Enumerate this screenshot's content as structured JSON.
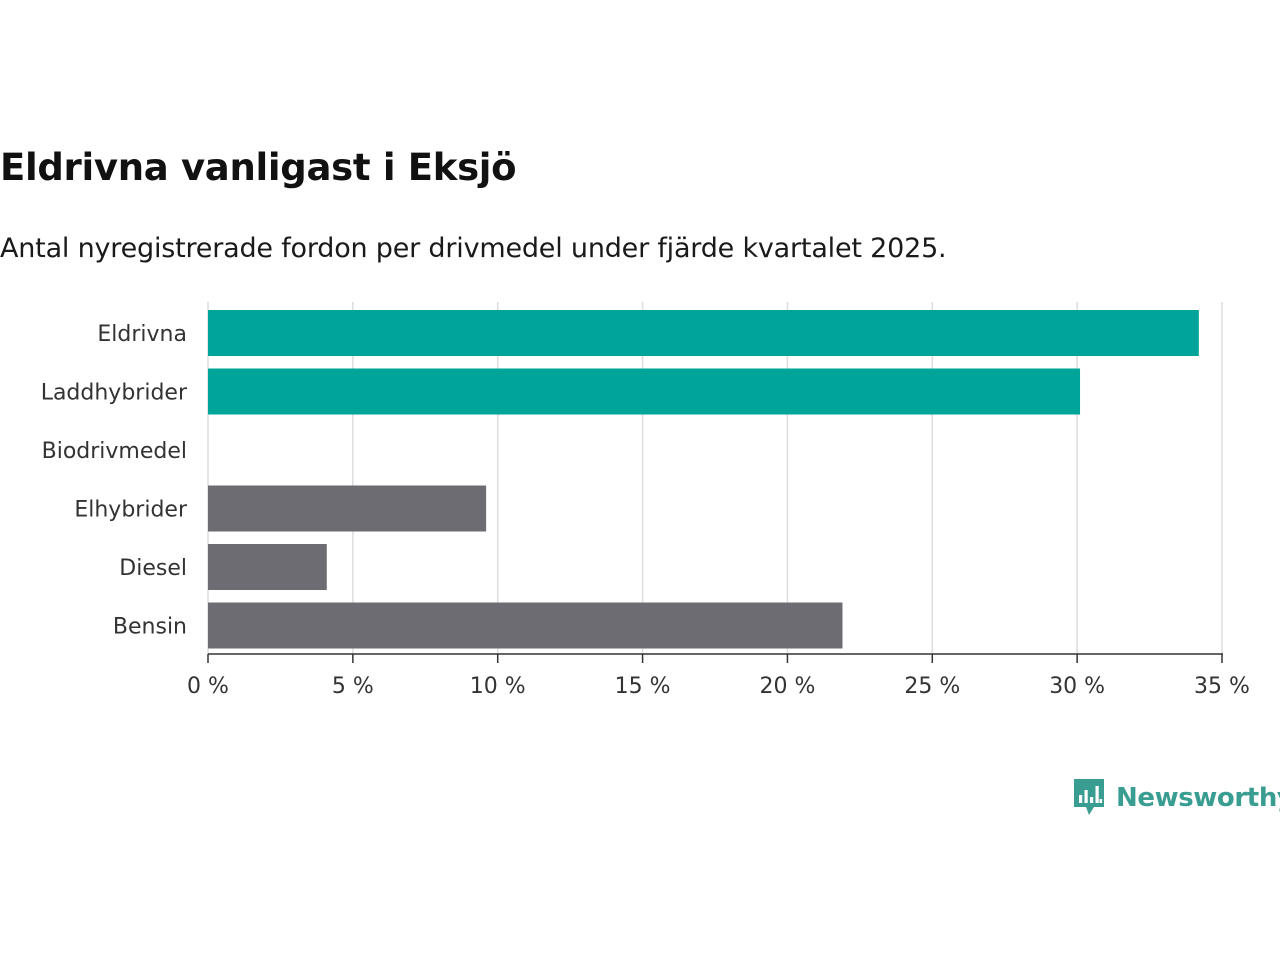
{
  "header": {
    "title": "Eldrivna vanligast i Eksjö",
    "subtitle": "Antal nyregistrerade fordon per drivmedel under fjärde kvartalet 2025."
  },
  "brand": {
    "name": "Newsworthy",
    "color": "#3a9d91"
  },
  "colors": {
    "highlight": "#00a499",
    "default": "#6d6c73",
    "grid": "#dddddd",
    "axis": "#333333"
  },
  "chart_data": {
    "type": "bar",
    "orientation": "horizontal",
    "title": "Eldrivna vanligast i Eksjö",
    "subtitle": "Antal nyregistrerade fordon per drivmedel under fjärde kvartalet 2025.",
    "xlabel": "",
    "ylabel": "",
    "unit": "%",
    "xlim": [
      0,
      35
    ],
    "ticks": [
      0,
      5,
      10,
      15,
      20,
      25,
      30,
      35
    ],
    "tick_labels": [
      "0 %",
      "5 %",
      "10 %",
      "15 %",
      "20 %",
      "25 %",
      "30 %",
      "35 %"
    ],
    "grid": true,
    "categories": [
      "Eldrivna",
      "Laddhybrider",
      "Biodrivmedel",
      "Elhybrider",
      "Diesel",
      "Bensin"
    ],
    "values": [
      34.2,
      30.1,
      0,
      9.6,
      4.1,
      21.9
    ],
    "highlighted": [
      true,
      true,
      true,
      false,
      false,
      false
    ]
  }
}
